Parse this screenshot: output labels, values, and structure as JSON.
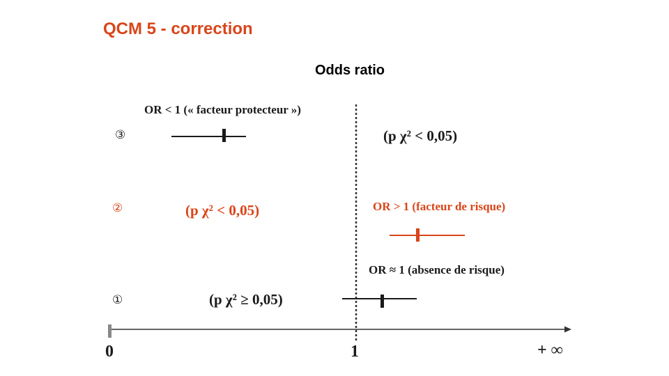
{
  "title": "QCM 5 - correction",
  "subtitle": "Odds ratio",
  "axis": {
    "label_zero": "0",
    "label_one": "1",
    "label_inf": "+ ∞"
  },
  "rows": [
    {
      "marker": "③",
      "label": "OR < 1 (« facteur protecteur »)",
      "p_label": "(p χ² < 0,05)",
      "color": "#1a1a1a"
    },
    {
      "marker": "②",
      "label": "OR > 1 (facteur de risque)",
      "p_label": "(p χ² < 0,05)",
      "color": "#d9451a"
    },
    {
      "marker": "①",
      "label": "OR ≈ 1 (absence de risque)",
      "p_label": "(p χ² ≥ 0,05)",
      "color": "#1a1a1a"
    }
  ],
  "colors": {
    "accent": "#d9451a",
    "text": "#1a1a1a",
    "axis": "#333333"
  }
}
